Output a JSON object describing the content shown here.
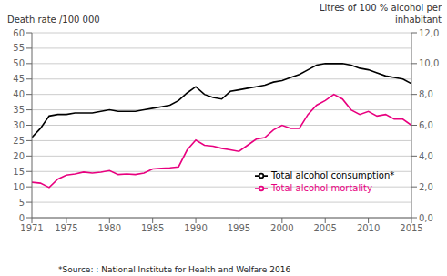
{
  "chart_data": {
    "type": "line",
    "y_label": "Death rate /100 000",
    "y2_label": "Litres of 100 % alcohol per\ninhabitant",
    "annotations": [
      "*Source: : National Institute for Health and Welfare 2016"
    ],
    "x": [
      1971,
      1972,
      1973,
      1974,
      1975,
      1976,
      1977,
      1978,
      1979,
      1980,
      1981,
      1982,
      1983,
      1984,
      1985,
      1986,
      1987,
      1988,
      1989,
      1990,
      1991,
      1992,
      1993,
      1994,
      1995,
      1996,
      1997,
      1998,
      1999,
      2000,
      2001,
      2002,
      2003,
      2004,
      2005,
      2006,
      2007,
      2008,
      2009,
      2010,
      2011,
      2012,
      2013,
      2014,
      2015
    ],
    "series": [
      {
        "name": "Total alcohol mortality",
        "color": "#e8007f",
        "axis": "y",
        "values": [
          11.5,
          11.2,
          9.8,
          12.5,
          13.8,
          14.2,
          14.8,
          14.5,
          14.8,
          15.3,
          14.0,
          14.2,
          14.0,
          14.5,
          15.8,
          16.0,
          16.2,
          16.5,
          22.0,
          25.2,
          23.5,
          23.2,
          22.5,
          22.0,
          21.5,
          23.5,
          25.5,
          26.0,
          28.5,
          30.0,
          29.0,
          29.0,
          33.5,
          36.5,
          38.0,
          40.0,
          38.5,
          35.0,
          33.5,
          34.5,
          33.0,
          33.5,
          32.0,
          32.0,
          30.0
        ]
      },
      {
        "name": "Total alcohol consumption*",
        "color": "#000000",
        "axis": "y2",
        "values": [
          5.2,
          5.8,
          6.6,
          6.7,
          6.7,
          6.8,
          6.8,
          6.8,
          6.9,
          7.0,
          6.9,
          6.9,
          6.9,
          7.0,
          7.1,
          7.2,
          7.3,
          7.6,
          8.1,
          8.5,
          8.0,
          7.8,
          7.7,
          8.2,
          8.3,
          8.4,
          8.5,
          8.6,
          8.8,
          8.9,
          9.1,
          9.3,
          9.6,
          9.9,
          10.0,
          10.0,
          10.0,
          9.9,
          9.7,
          9.6,
          9.4,
          9.2,
          9.1,
          9.0,
          8.7
        ]
      }
    ],
    "xlim": [
      1971,
      2015
    ],
    "xticks": [
      1971,
      1975,
      1980,
      1985,
      1990,
      1995,
      2000,
      2005,
      2010,
      2015
    ],
    "ylim": [
      0,
      60
    ],
    "yticks": [
      0,
      5,
      10,
      15,
      20,
      25,
      30,
      35,
      40,
      45,
      50,
      55,
      60
    ],
    "y2lim": [
      0.0,
      12.0
    ],
    "y2ticks": [
      {
        "value": 0.0,
        "label": "0,0"
      },
      {
        "value": 2.0,
        "label": "2,0"
      },
      {
        "value": 4.0,
        "label": "4,0"
      },
      {
        "value": 6.0,
        "label": "6,0"
      },
      {
        "value": 8.0,
        "label": "8,0"
      },
      {
        "value": 10.0,
        "label": "10,0"
      },
      {
        "value": 12.0,
        "label": "12,0"
      }
    ],
    "grid": "y",
    "legend": "lower right"
  }
}
